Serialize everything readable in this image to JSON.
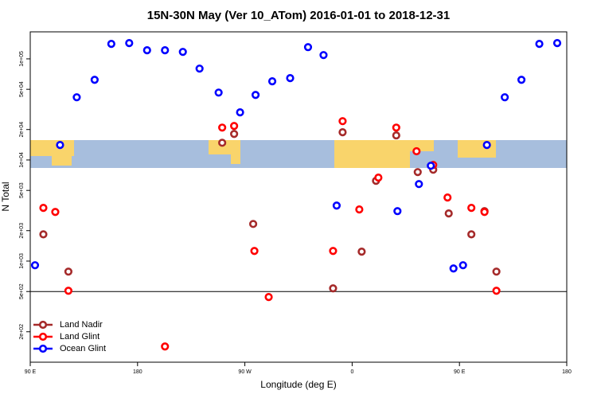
{
  "chart_data": {
    "type": "scatter",
    "title": "15N-30N May (Ver 10_ATom)   2016-01-01 to 2018-12-31",
    "x_label": "Longitude (deg E)",
    "y_label": "N Total",
    "xlim": [
      90,
      540
    ],
    "ylim": [
      100,
      185000
    ],
    "log_y": true,
    "xticks": [
      {
        "value": 90,
        "label": "90 E"
      },
      180,
      {
        "value": 270,
        "label": "90 W"
      },
      {
        "value": 360,
        "label": "0"
      },
      {
        "value": 450,
        "label": "90 E"
      },
      {
        "value": 540,
        "label": "180"
      }
    ],
    "yticks": [
      {
        "value": 100000,
        "label": "1e+05"
      },
      {
        "value": 50000,
        "label": "5e+04"
      },
      {
        "value": 20000,
        "label": "2e+04"
      },
      {
        "value": 10000,
        "label": "1e+04"
      },
      {
        "value": 5000,
        "label": "5e+03"
      },
      {
        "value": 2000,
        "label": "2e+03"
      },
      {
        "value": 1000,
        "label": "1e+03"
      },
      {
        "value": 500,
        "label": "5e+02"
      },
      {
        "value": 200,
        "label": "2e+02"
      }
    ],
    "hline": 500,
    "legend": "bottom-left",
    "series": [
      {
        "name": "Land Nadir",
        "color": "#a52a2a",
        "x": [
          101,
          122,
          251,
          261,
          277,
          344,
          352,
          368,
          380,
          397,
          415,
          428,
          441,
          460,
          471,
          481
        ],
        "values": [
          1840,
          787,
          14800,
          18100,
          2330,
          537,
          18800,
          1240,
          6220,
          17500,
          7590,
          8010,
          2960,
          1840,
          3120,
          787
        ]
      },
      {
        "name": "Land Glint",
        "color": "#ff0000",
        "x": [
          101,
          111,
          122,
          203,
          251,
          261,
          278,
          290,
          344,
          352,
          366,
          382,
          397,
          414,
          428,
          440,
          460,
          471,
          481
        ],
        "values": [
          3360,
          3060,
          509,
          143,
          20900,
          21700,
          1260,
          441,
          1260,
          24200,
          3240,
          6690,
          20900,
          12200,
          8930,
          4250,
          3360,
          3060,
          509
        ]
      },
      {
        "name": "Ocean Glint",
        "color": "#0000ff",
        "x": [
          94,
          115,
          129,
          144,
          158,
          173,
          188,
          203,
          218,
          232,
          248,
          266,
          279,
          293,
          308,
          323,
          336,
          347,
          398,
          416,
          426,
          445,
          453,
          473,
          488,
          502,
          517,
          532
        ],
        "values": [
          910,
          14060,
          41700,
          62100,
          140600,
          143200,
          121600,
          121600,
          117200,
          80100,
          46400,
          29600,
          44000,
          60000,
          64500,
          130600,
          109000,
          3540,
          3120,
          5780,
          8770,
          845,
          910,
          14060,
          41700,
          62100,
          140600,
          143200
        ]
      }
    ]
  }
}
